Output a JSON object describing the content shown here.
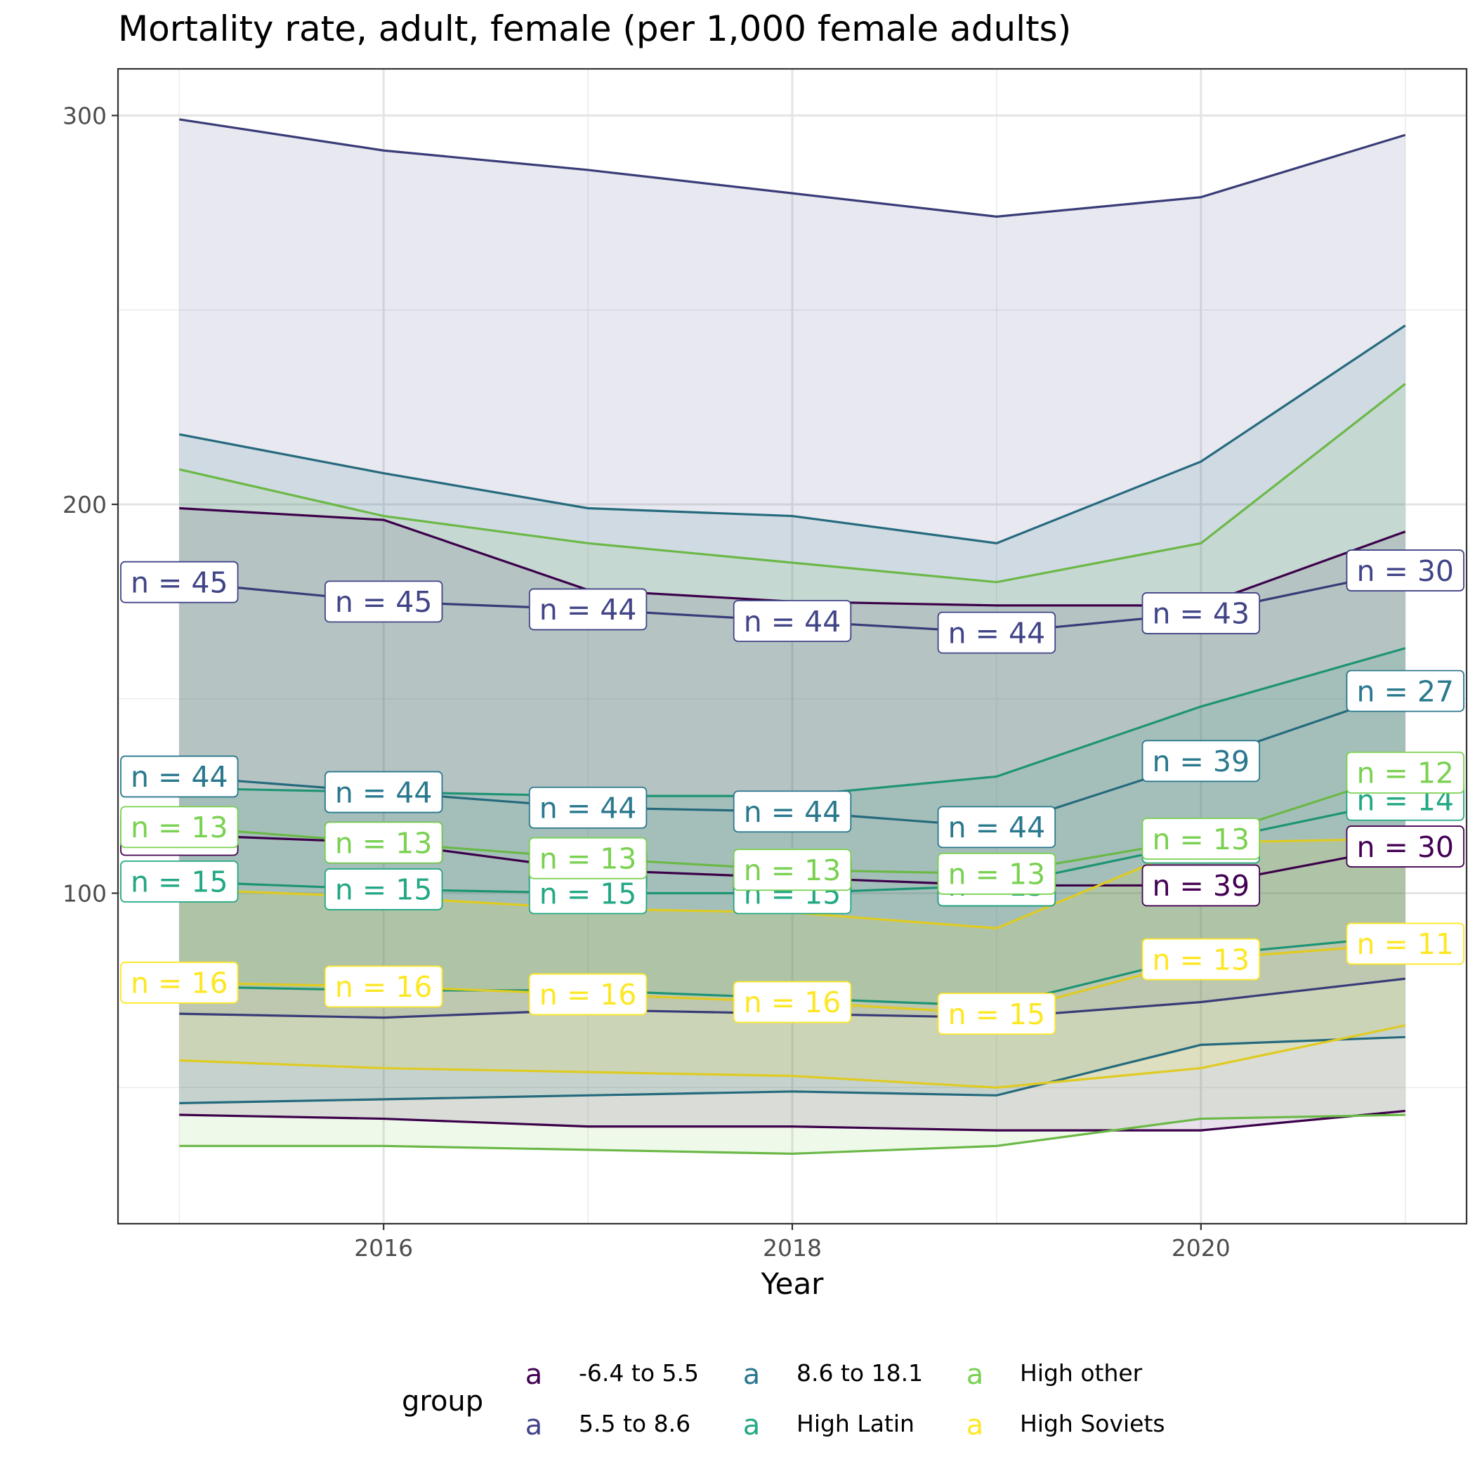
{
  "chart_data": {
    "type": "line",
    "title": "Mortality rate, adult, female (per 1,000 female adults)",
    "xlabel": "Year",
    "ylabel": "",
    "x": [
      2015,
      2016,
      2017,
      2018,
      2019,
      2020,
      2021
    ],
    "xlim": [
      2014.7,
      2021.3
    ],
    "ylim": [
      15,
      312
    ],
    "x_ticks": [
      2016,
      2018,
      2020
    ],
    "x_tick_labels": [
      "2016",
      "2018",
      "2020"
    ],
    "y_ticks": [
      100,
      200,
      300
    ],
    "y_tick_labels": [
      "100",
      "200",
      "300"
    ],
    "grid": true,
    "legend": {
      "title": "group",
      "position": "bottom",
      "key_glyph": "a",
      "entries": [
        "-6.4 to 5.5",
        "5.5 to 8.6",
        "8.6 to 18.1",
        "High Latin",
        "High other",
        "High Soviets"
      ]
    },
    "colors": {
      "-6.4 to 5.5": "#440154",
      "5.5 to 8.6": "#414487",
      "8.6 to 18.1": "#2A788E",
      "High Latin": "#22A884",
      "High other": "#7AD151",
      "High Soviets": "#FDE725"
    },
    "series": [
      {
        "name": "-6.4 to 5.5",
        "values": [
          115,
          113,
          106,
          104,
          102,
          102,
          112
        ],
        "upper": [
          199,
          196,
          178,
          175,
          174,
          174,
          193
        ],
        "lower": [
          43,
          42,
          40,
          40,
          39,
          39,
          44
        ],
        "labels": [
          "n = 39",
          "n = 39",
          "n = 39",
          "n = 39",
          "n = 39",
          "n = 39",
          "n = 30"
        ]
      },
      {
        "name": "5.5 to 8.6",
        "values": [
          180,
          175,
          173,
          170,
          167,
          172,
          183
        ],
        "upper": [
          299,
          291,
          286,
          280,
          274,
          279,
          295
        ],
        "lower": [
          69,
          68,
          70,
          69,
          68,
          72,
          78
        ],
        "labels": [
          "n = 45",
          "n = 45",
          "n = 44",
          "n = 44",
          "n = 44",
          "n = 43",
          "n = 30"
        ]
      },
      {
        "name": "8.6 to 18.1",
        "values": [
          130,
          126,
          122,
          121,
          117,
          134,
          152
        ],
        "upper": [
          218,
          208,
          199,
          197,
          190,
          211,
          246
        ],
        "lower": [
          46,
          47,
          48,
          49,
          48,
          61,
          63
        ],
        "labels": [
          "n = 44",
          "n = 44",
          "n = 44",
          "n = 44",
          "n = 44",
          "n = 39",
          "n = 27"
        ]
      },
      {
        "name": "High Latin",
        "values": [
          103,
          101,
          100,
          100,
          102,
          113,
          124
        ],
        "upper": [
          127,
          126,
          125,
          125,
          130,
          148,
          163
        ],
        "lower": [
          76,
          75,
          75,
          73,
          71,
          84,
          89
        ],
        "labels": [
          "n = 15",
          "n = 15",
          "n = 15",
          "n = 15",
          "n = 15",
          "n = 13",
          "n = 14"
        ]
      },
      {
        "name": "High other",
        "values": [
          117,
          113,
          109,
          106,
          105,
          114,
          131
        ],
        "upper": [
          209,
          197,
          190,
          185,
          180,
          190,
          231
        ],
        "lower": [
          35,
          35,
          34,
          33,
          35,
          42,
          43
        ],
        "labels": [
          "n = 13",
          "n = 13",
          "n = 13",
          "n = 13",
          "n = 13",
          "n = 13",
          "n = 12"
        ]
      },
      {
        "name": "High Soviets",
        "values": [
          77,
          76,
          74,
          72,
          69,
          83,
          87
        ],
        "upper": [
          101,
          99,
          96,
          95,
          91,
          113,
          114
        ],
        "lower": [
          57,
          55,
          54,
          53,
          50,
          55,
          66
        ],
        "labels": [
          "n = 16",
          "n = 16",
          "n = 16",
          "n = 16",
          "n = 15",
          "n = 13",
          "n = 11"
        ]
      }
    ]
  }
}
